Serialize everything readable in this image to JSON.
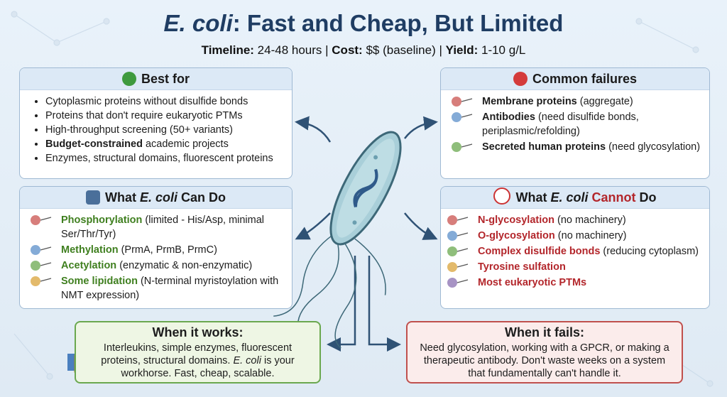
{
  "title": [
    {
      "text": "E. coli",
      "style": "italic"
    },
    ": Fast and Cheap, But Limited"
  ],
  "subtitle": [
    {
      "text": "Timeline:",
      "style": "bold"
    },
    " 24-48 hours | ",
    {
      "text": "Cost:",
      "style": "bold"
    },
    " $$ (baseline) | ",
    {
      "text": "Yield:",
      "style": "bold"
    },
    " 1-10 g/L"
  ],
  "best_for": {
    "title": "Best for",
    "items": [
      "Cytoplasmic proteins without disulfide bonds",
      "Proteins that don't require eukaryotic PTMs",
      "High-throughput screening (50+ variants)",
      [
        {
          "text": "Budget-constrained",
          "style": "bold"
        },
        " academic projects"
      ],
      "Enzymes, structural domains, fluorescent proteins"
    ]
  },
  "common_failures": {
    "title": "Common failures",
    "items": [
      [
        {
          "text": "Membrane proteins",
          "style": "bold"
        },
        " (aggregate)"
      ],
      [
        {
          "text": "Antibodies",
          "style": "bold"
        },
        " (need disulfide bonds, periplasmic/refolding)"
      ],
      [
        {
          "text": "Secreted human proteins",
          "style": "bold"
        },
        " (need glycosylation)"
      ]
    ]
  },
  "can_do": {
    "title": [
      "What ",
      {
        "text": "E. coli",
        "style": "italic"
      },
      " Can Do"
    ],
    "items": [
      [
        {
          "text": "Phosphorylation",
          "style": "green"
        },
        " (limited - His/Asp, minimal Ser/Thr/Tyr)"
      ],
      [
        {
          "text": "Methylation",
          "style": "green"
        },
        " (PrmA, PrmB, PrmC)"
      ],
      [
        {
          "text": "Acetylation",
          "style": "green"
        },
        " (enzymatic & non-enzymatic)"
      ],
      [
        {
          "text": "Some lipidation",
          "style": "green"
        },
        " (N-terminal myristoylation with NMT expression)"
      ]
    ]
  },
  "cannot_do": {
    "title": [
      "What ",
      {
        "text": "E. coli",
        "style": "italic"
      },
      " ",
      {
        "text": "Cannot",
        "style": "red"
      },
      " Do"
    ],
    "items": [
      [
        {
          "text": "N-glycosylation",
          "style": "red"
        },
        " (no machinery)"
      ],
      [
        {
          "text": "O-glycosylation",
          "style": "red"
        },
        " (no machinery)"
      ],
      [
        {
          "text": "Complex disulfide bonds",
          "style": "red"
        },
        " (reducing cytoplasm)"
      ],
      [
        {
          "text": "Tyrosine sulfation",
          "style": "red"
        }
      ],
      [
        {
          "text": "Most eukaryotic PTMs",
          "style": "red"
        }
      ]
    ]
  },
  "when_works": {
    "title": "When it works:",
    "body": [
      "Interleukins, simple enzymes, fluorescent proteins, structural domains. ",
      {
        "text": "E. coli",
        "style": "italic"
      },
      " is your workhorse. Fast, cheap, scalable."
    ]
  },
  "when_fails": {
    "title": "When it fails:",
    "body": "Need glycosylation, working with a GPCR, or making a therapeutic antibody. Don't waste weeks on a system that fundamentally can't handle it."
  }
}
